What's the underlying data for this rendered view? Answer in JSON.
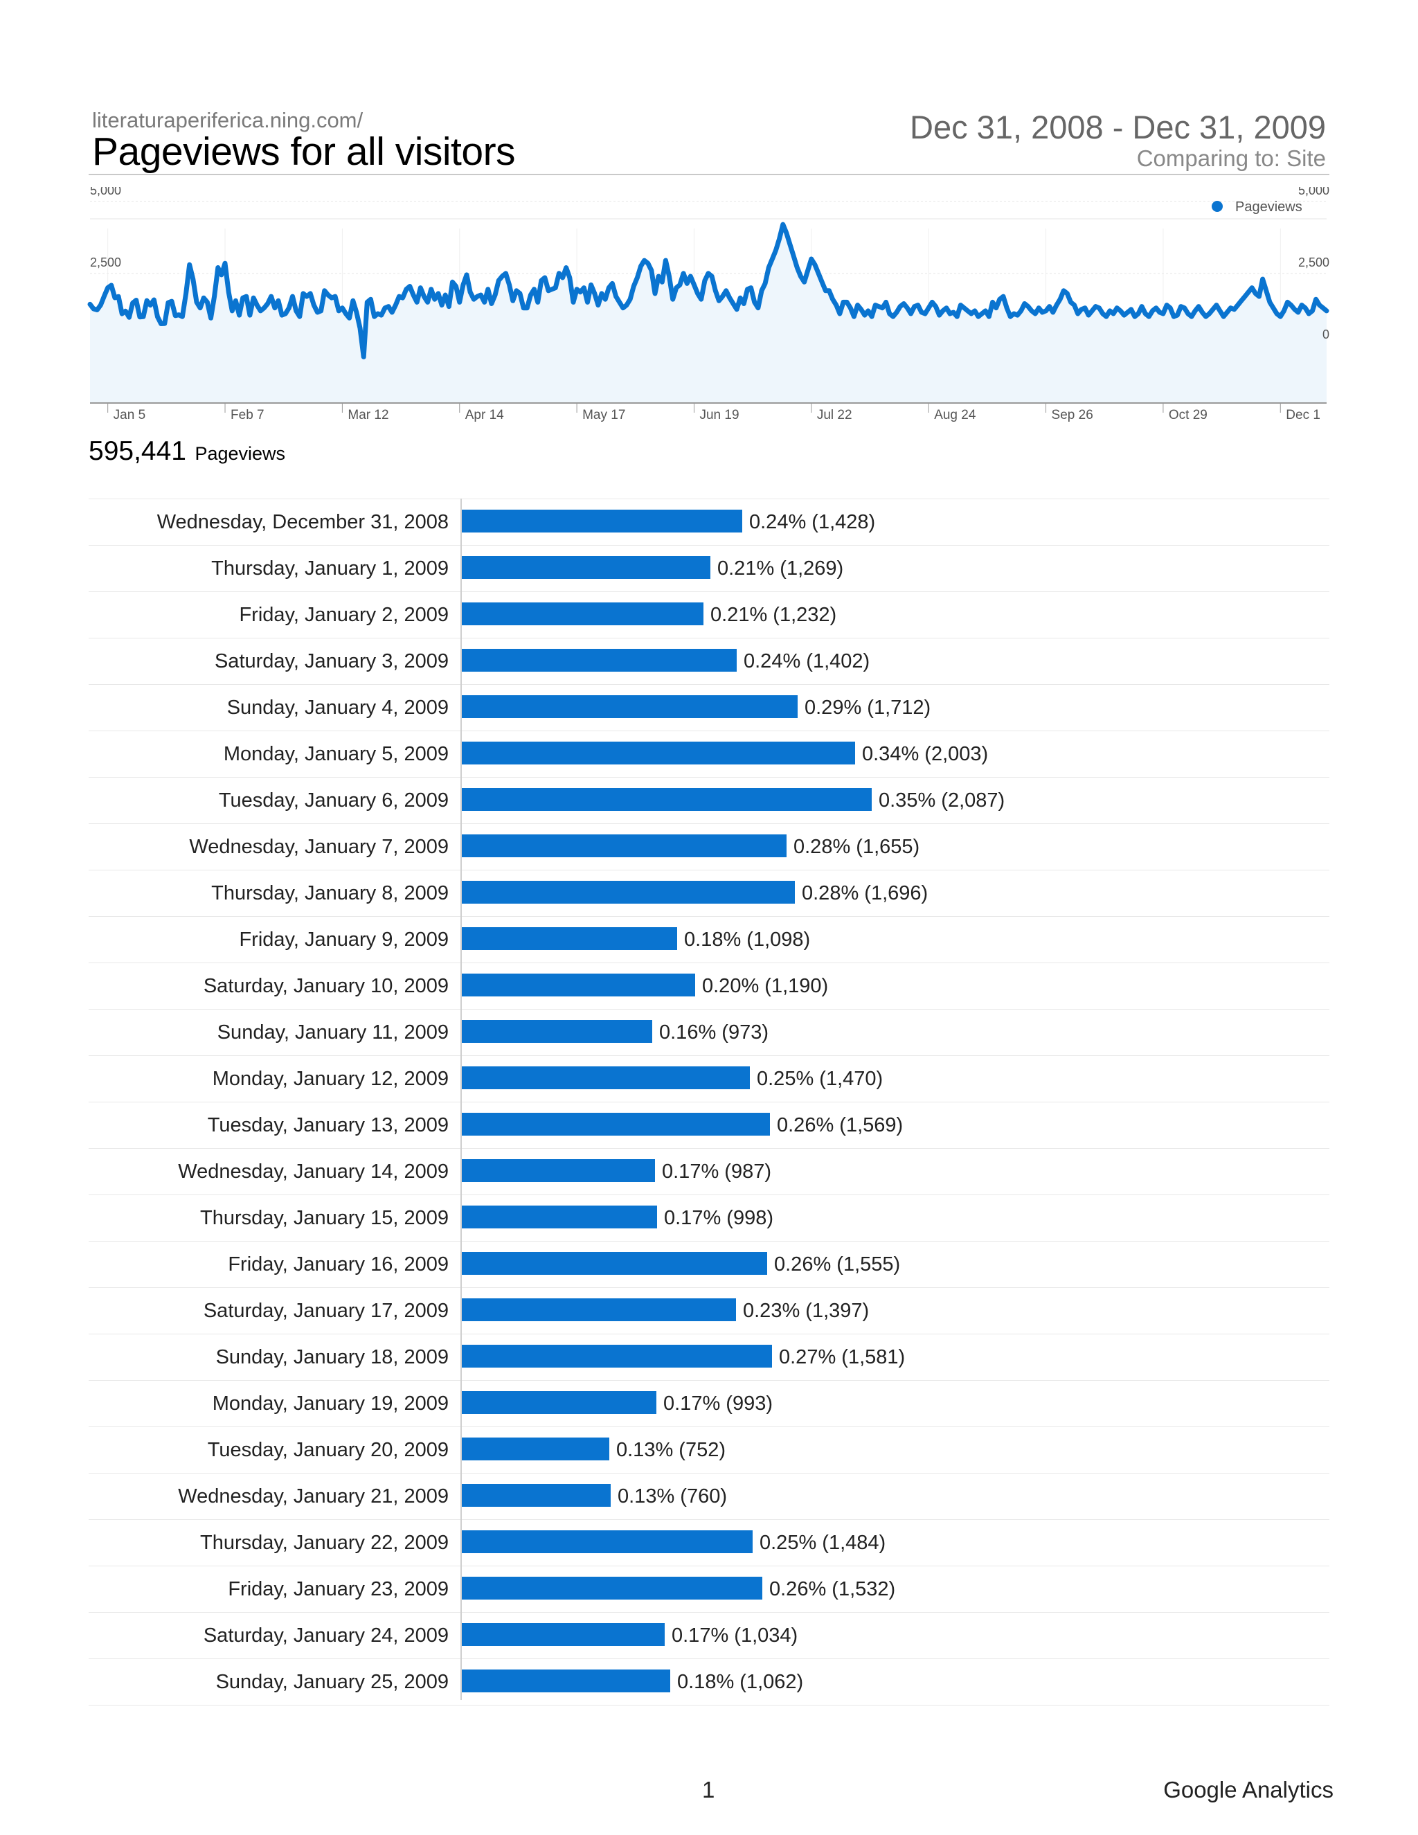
{
  "header": {
    "site_url": "literaturaperiferica.ning.com/",
    "title": "Pageviews for all visitors",
    "date_range": "Dec 31, 2008 - Dec 31, 2009",
    "comparing": "Comparing to: Site"
  },
  "summary": {
    "total_value": "595,441",
    "total_label": "Pageviews"
  },
  "colors": {
    "accent": "#0a74d0",
    "area_fill": "#eef6fc",
    "grid": "#e6e6e6"
  },
  "footer": {
    "page_number": "1",
    "brand": "Google Analytics"
  },
  "chart_data": [
    {
      "type": "line",
      "title": "",
      "legend": [
        "Pageviews"
      ],
      "legend_position": "top-right",
      "x_tick_labels": [
        "Jan 5",
        "Feb 7",
        "Mar 12",
        "Apr 14",
        "May 17",
        "Jun 19",
        "Jul 22",
        "Aug 24",
        "Sep 26",
        "Oct 29",
        "Dec 1"
      ],
      "x_tick_days": [
        5,
        38,
        71,
        104,
        137,
        170,
        203,
        236,
        269,
        302,
        335
      ],
      "y_left_ticks": [
        "5,000",
        "2,500"
      ],
      "y_right_ticks": [
        "5,000",
        "2,500",
        "0"
      ],
      "ylim": [
        -2000,
        5500
      ],
      "series": [
        {
          "name": "Pageviews",
          "values": [
            1428,
            1269,
            1232,
            1402,
            1712,
            2003,
            2087,
            1655,
            1696,
            1098,
            1190,
            973,
            1470,
            1569,
            987,
            998,
            1555,
            1397,
            1581,
            993,
            752,
            760,
            1484,
            1532,
            1034,
            1062,
            1000,
            1800,
            2800,
            2300,
            1500,
            1300,
            1650,
            1500,
            950,
            1700,
            2700,
            2450,
            2850,
            1850,
            1200,
            1550,
            1050,
            1650,
            1700,
            1050,
            1650,
            1400,
            1200,
            1300,
            1450,
            1700,
            1300,
            1550,
            1050,
            1100,
            1300,
            1700,
            1200,
            1000,
            1800,
            1700,
            1800,
            1400,
            1150,
            1200,
            1900,
            1750,
            1650,
            1700,
            1200,
            1300,
            1100,
            950,
            1550,
            1150,
            600,
            -400,
            1500,
            1600,
            1000,
            1100,
            1050,
            1300,
            1350,
            1150,
            1400,
            1700,
            1650,
            1950,
            2050,
            1750,
            1500,
            2000,
            1700,
            1500,
            1950,
            1600,
            1800,
            1400,
            1750,
            1350,
            2200,
            2050,
            1500,
            2100,
            2450,
            1850,
            1600,
            1700,
            1750,
            1500,
            1950,
            1450,
            1750,
            2250,
            2400,
            2500,
            2100,
            1550,
            1900,
            1800,
            1300,
            1300,
            1750,
            1950,
            1500,
            2250,
            2350,
            1900,
            1950,
            2000,
            2500,
            2350,
            2700,
            2350,
            1500,
            1950,
            1850,
            2000,
            1500,
            2100,
            1800,
            1400,
            1800,
            1600,
            2000,
            2150,
            1700,
            1500,
            1300,
            1400,
            1600,
            2050,
            2350,
            2750,
            2950,
            2850,
            2600,
            1800,
            2400,
            2200,
            2950,
            2400,
            1600,
            2000,
            2100,
            2500,
            2150,
            2400,
            2100,
            1800,
            1600,
            2250,
            2500,
            2400,
            1900,
            1550,
            1700,
            1900,
            1650,
            1450,
            1250,
            1650,
            1450,
            1950,
            2000,
            1500,
            1300,
            1900,
            2150,
            2700,
            3000,
            3300,
            3700,
            4200,
            3900,
            3500,
            3100,
            2700,
            2400,
            2200,
            2600,
            3000,
            2800,
            2500,
            2200,
            1900,
            1900,
            1600,
            1400,
            1100,
            1500,
            1500,
            1300,
            1000,
            1400,
            1250,
            1050,
            1200,
            1000,
            1400,
            1350,
            1300,
            1500,
            1100,
            1000,
            1150,
            1350,
            1450,
            1300,
            1100,
            1350,
            1400,
            1150,
            1100,
            1300,
            1500,
            1350,
            1050,
            1200,
            1300,
            1100,
            1150,
            1000,
            1400,
            1300,
            1200,
            1100,
            1200,
            1000,
            1100,
            1200,
            1000,
            1500,
            1300,
            1600,
            1700,
            1300,
            1000,
            1100,
            1050,
            1200,
            1450,
            1350,
            1200,
            1100,
            1300,
            1150,
            1200,
            1350,
            1150,
            1400,
            1600,
            1900,
            1800,
            1500,
            1400,
            1100,
            1250,
            1300,
            1050,
            1200,
            1350,
            1300,
            1100,
            1000,
            1200,
            1100,
            1300,
            1200,
            1050,
            1150,
            1250,
            1000,
            1100,
            1350,
            1100,
            1000,
            1200,
            1300,
            1150,
            1100,
            1400,
            1300,
            1000,
            1050,
            1350,
            1300,
            1100,
            1000,
            1200,
            1350,
            1150,
            1000,
            1100,
            1250,
            1400,
            1200,
            1000,
            1150,
            1300,
            1250,
            1400,
            1550,
            1700,
            1850,
            2000,
            1800,
            1700,
            2300,
            1900,
            1500,
            1300,
            1100,
            1000,
            1200,
            1500,
            1400,
            1250,
            1150,
            1400,
            1300,
            1100,
            1200,
            1600,
            1400,
            1300,
            1200
          ]
        }
      ]
    },
    {
      "type": "bar",
      "orientation": "horizontal",
      "xlabel": "",
      "ylabel": "",
      "xlim": [
        0,
        5000
      ],
      "categories": [
        "Wednesday, December 31, 2008",
        "Thursday, January 1, 2009",
        "Friday, January 2, 2009",
        "Saturday, January 3, 2009",
        "Sunday, January 4, 2009",
        "Monday, January 5, 2009",
        "Tuesday, January 6, 2009",
        "Wednesday, January 7, 2009",
        "Thursday, January 8, 2009",
        "Friday, January 9, 2009",
        "Saturday, January 10, 2009",
        "Sunday, January 11, 2009",
        "Monday, January 12, 2009",
        "Tuesday, January 13, 2009",
        "Wednesday, January 14, 2009",
        "Thursday, January 15, 2009",
        "Friday, January 16, 2009",
        "Saturday, January 17, 2009",
        "Sunday, January 18, 2009",
        "Monday, January 19, 2009",
        "Tuesday, January 20, 2009",
        "Wednesday, January 21, 2009",
        "Thursday, January 22, 2009",
        "Friday, January 23, 2009",
        "Saturday, January 24, 2009",
        "Sunday, January 25, 2009"
      ],
      "values": [
        1428,
        1269,
        1232,
        1402,
        1712,
        2003,
        2087,
        1655,
        1696,
        1098,
        1190,
        973,
        1470,
        1569,
        987,
        998,
        1555,
        1397,
        1581,
        993,
        752,
        760,
        1484,
        1532,
        1034,
        1062
      ],
      "data_labels": [
        "0.24% (1,428)",
        "0.21% (1,269)",
        "0.21% (1,232)",
        "0.24% (1,402)",
        "0.29% (1,712)",
        "0.34% (2,003)",
        "0.35% (2,087)",
        "0.28% (1,655)",
        "0.28% (1,696)",
        "0.18% (1,098)",
        "0.20% (1,190)",
        "0.16% (973)",
        "0.25% (1,470)",
        "0.26% (1,569)",
        "0.17% (987)",
        "0.17% (998)",
        "0.26% (1,555)",
        "0.23% (1,397)",
        "0.27% (1,581)",
        "0.17% (993)",
        "0.13% (752)",
        "0.13% (760)",
        "0.25% (1,484)",
        "0.26% (1,532)",
        "0.17% (1,034)",
        "0.18% (1,062)"
      ]
    }
  ]
}
